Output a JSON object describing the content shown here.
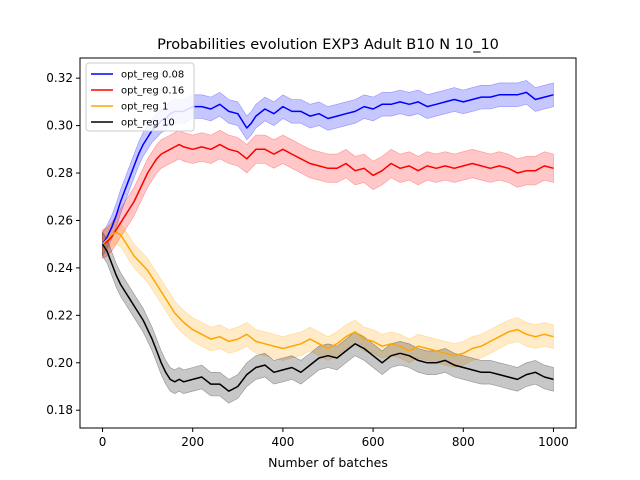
{
  "chart_data": {
    "type": "line",
    "title": "Probabilities evolution EXP3 Adult B10 N 10_10",
    "xlabel": "Number of batches",
    "ylabel": "",
    "xlim": [
      -50,
      1050
    ],
    "ylim": [
      0.1725,
      0.3285
    ],
    "xticks": [
      0,
      200,
      400,
      600,
      800,
      1000
    ],
    "yticks": [
      0.18,
      0.2,
      0.22,
      0.24,
      0.26,
      0.28,
      0.3,
      0.32
    ],
    "legend_position": "top-left",
    "grid": false,
    "series": [
      {
        "name": "opt_reg 0.08",
        "color": "#0000ff",
        "band": 0.005,
        "x": [
          0,
          10,
          20,
          30,
          40,
          50,
          60,
          70,
          80,
          90,
          100,
          110,
          120,
          130,
          140,
          150,
          160,
          170,
          180,
          200,
          220,
          240,
          260,
          280,
          300,
          320,
          330,
          340,
          360,
          380,
          400,
          420,
          440,
          460,
          480,
          500,
          520,
          540,
          560,
          580,
          600,
          620,
          640,
          660,
          680,
          700,
          720,
          740,
          760,
          780,
          800,
          820,
          840,
          860,
          880,
          900,
          920,
          940,
          960,
          980,
          1000
        ],
        "values": [
          0.25,
          0.253,
          0.257,
          0.262,
          0.268,
          0.273,
          0.278,
          0.283,
          0.288,
          0.292,
          0.295,
          0.298,
          0.3,
          0.302,
          0.303,
          0.305,
          0.306,
          0.306,
          0.306,
          0.308,
          0.308,
          0.307,
          0.309,
          0.306,
          0.305,
          0.299,
          0.301,
          0.304,
          0.307,
          0.305,
          0.308,
          0.306,
          0.306,
          0.304,
          0.305,
          0.303,
          0.304,
          0.305,
          0.306,
          0.308,
          0.307,
          0.309,
          0.309,
          0.31,
          0.309,
          0.31,
          0.308,
          0.309,
          0.31,
          0.311,
          0.31,
          0.311,
          0.312,
          0.312,
          0.313,
          0.313,
          0.313,
          0.314,
          0.311,
          0.312,
          0.313
        ]
      },
      {
        "name": "opt_reg 0.16",
        "color": "#ff0000",
        "band": 0.006,
        "x": [
          0,
          10,
          20,
          30,
          40,
          50,
          60,
          70,
          80,
          90,
          100,
          110,
          120,
          130,
          140,
          150,
          160,
          170,
          180,
          200,
          220,
          240,
          260,
          280,
          300,
          320,
          340,
          360,
          380,
          400,
          420,
          440,
          460,
          480,
          500,
          520,
          540,
          560,
          580,
          600,
          620,
          640,
          660,
          680,
          700,
          720,
          740,
          760,
          780,
          800,
          820,
          840,
          860,
          880,
          900,
          920,
          940,
          960,
          980,
          1000
        ],
        "values": [
          0.25,
          0.251,
          0.253,
          0.256,
          0.259,
          0.262,
          0.265,
          0.268,
          0.272,
          0.276,
          0.28,
          0.283,
          0.286,
          0.288,
          0.289,
          0.29,
          0.291,
          0.292,
          0.291,
          0.29,
          0.291,
          0.29,
          0.292,
          0.29,
          0.289,
          0.286,
          0.29,
          0.29,
          0.288,
          0.29,
          0.288,
          0.286,
          0.284,
          0.283,
          0.282,
          0.282,
          0.284,
          0.281,
          0.282,
          0.279,
          0.281,
          0.284,
          0.282,
          0.283,
          0.281,
          0.283,
          0.282,
          0.283,
          0.282,
          0.283,
          0.284,
          0.283,
          0.282,
          0.283,
          0.282,
          0.28,
          0.281,
          0.281,
          0.283,
          0.282
        ]
      },
      {
        "name": "opt_reg 1",
        "color": "#ffa500",
        "band": 0.005,
        "x": [
          0,
          10,
          20,
          30,
          40,
          50,
          60,
          70,
          80,
          90,
          100,
          110,
          120,
          130,
          140,
          150,
          160,
          170,
          180,
          200,
          220,
          240,
          260,
          280,
          300,
          320,
          340,
          360,
          380,
          400,
          420,
          440,
          460,
          480,
          500,
          520,
          540,
          560,
          580,
          600,
          620,
          640,
          660,
          680,
          700,
          720,
          740,
          760,
          780,
          800,
          820,
          840,
          860,
          880,
          900,
          920,
          940,
          960,
          980,
          1000
        ],
        "values": [
          0.25,
          0.252,
          0.254,
          0.255,
          0.254,
          0.251,
          0.248,
          0.245,
          0.243,
          0.241,
          0.239,
          0.236,
          0.233,
          0.23,
          0.227,
          0.224,
          0.221,
          0.219,
          0.217,
          0.214,
          0.212,
          0.21,
          0.211,
          0.209,
          0.21,
          0.212,
          0.209,
          0.208,
          0.207,
          0.206,
          0.207,
          0.208,
          0.21,
          0.208,
          0.206,
          0.208,
          0.211,
          0.213,
          0.21,
          0.209,
          0.207,
          0.208,
          0.207,
          0.205,
          0.207,
          0.206,
          0.205,
          0.204,
          0.203,
          0.204,
          0.206,
          0.207,
          0.209,
          0.211,
          0.213,
          0.214,
          0.212,
          0.211,
          0.212,
          0.211
        ]
      },
      {
        "name": "opt_reg 10",
        "color": "#000000",
        "band": 0.005,
        "x": [
          0,
          10,
          20,
          30,
          40,
          50,
          60,
          70,
          80,
          90,
          100,
          110,
          120,
          130,
          140,
          150,
          160,
          170,
          180,
          200,
          220,
          240,
          260,
          280,
          300,
          320,
          340,
          360,
          380,
          400,
          420,
          440,
          460,
          480,
          500,
          520,
          540,
          560,
          580,
          600,
          620,
          640,
          660,
          680,
          700,
          720,
          740,
          760,
          780,
          800,
          820,
          840,
          860,
          880,
          900,
          920,
          940,
          960,
          980,
          1000
        ],
        "values": [
          0.25,
          0.247,
          0.242,
          0.237,
          0.233,
          0.23,
          0.227,
          0.224,
          0.221,
          0.218,
          0.214,
          0.21,
          0.205,
          0.2,
          0.196,
          0.193,
          0.192,
          0.193,
          0.192,
          0.193,
          0.194,
          0.191,
          0.191,
          0.188,
          0.19,
          0.195,
          0.198,
          0.199,
          0.196,
          0.197,
          0.198,
          0.196,
          0.199,
          0.202,
          0.203,
          0.202,
          0.205,
          0.208,
          0.206,
          0.203,
          0.2,
          0.203,
          0.204,
          0.203,
          0.201,
          0.2,
          0.2,
          0.201,
          0.199,
          0.198,
          0.197,
          0.196,
          0.196,
          0.195,
          0.194,
          0.193,
          0.195,
          0.196,
          0.194,
          0.193
        ]
      }
    ]
  }
}
